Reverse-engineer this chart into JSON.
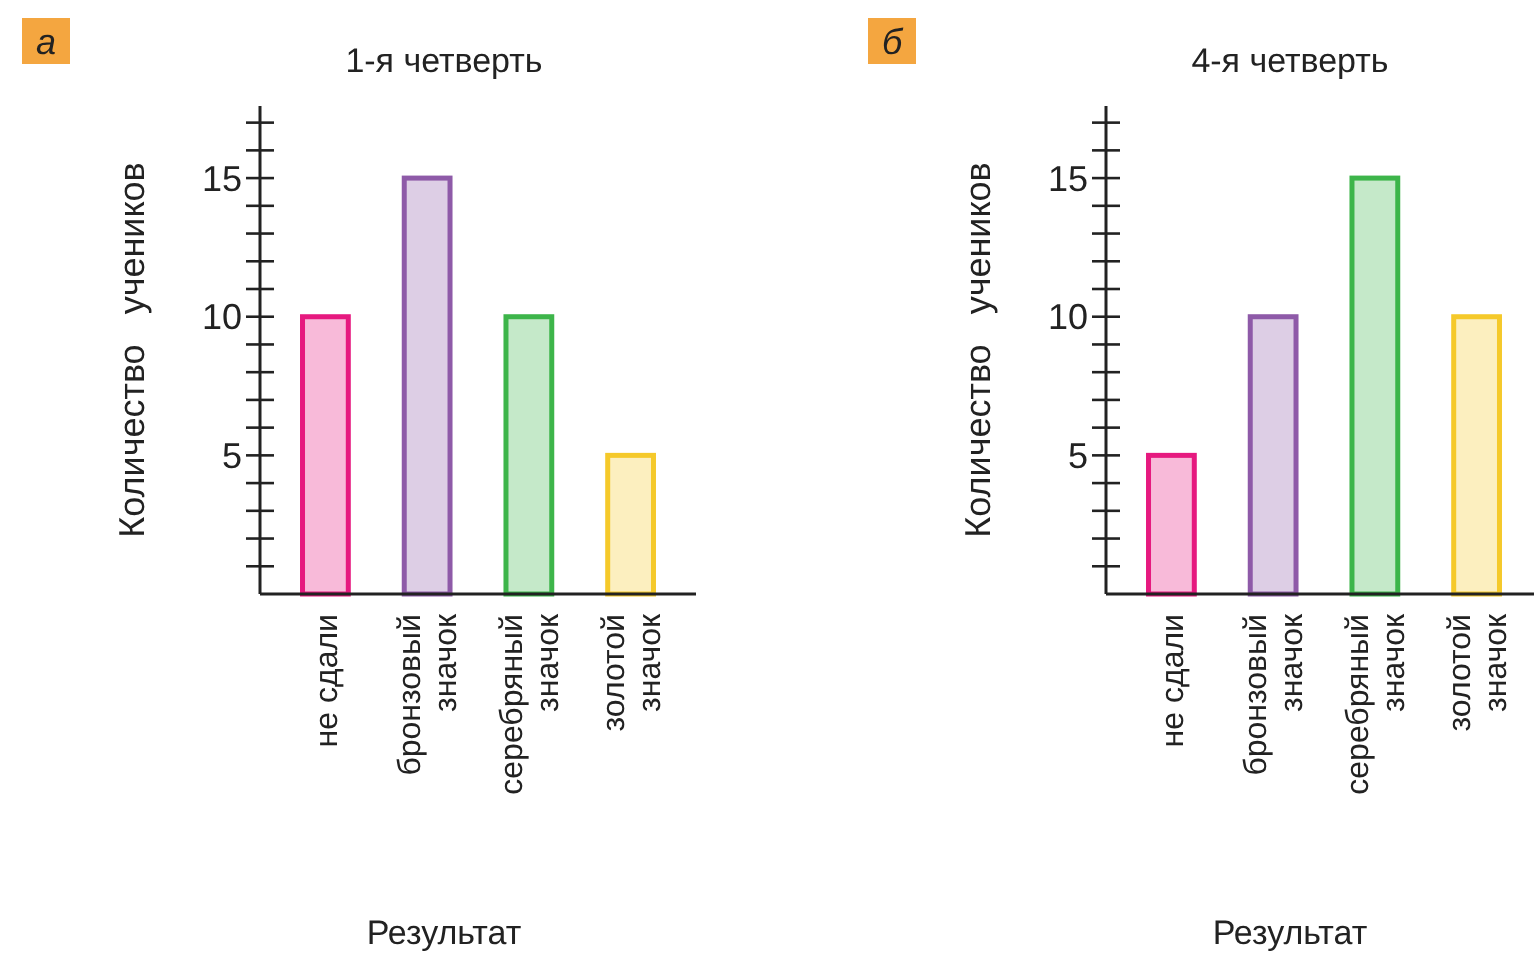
{
  "chart_data": [
    {
      "type": "bar",
      "title": "1-я четверть",
      "xlabel": "Результат",
      "ylabel": "Количество   учеников",
      "annotations": [
        "а"
      ],
      "categories": [
        "не сдали",
        "бронзовый\nзначок",
        "серебряный\nзначок",
        "золотой\nзначок"
      ],
      "values": [
        10,
        15,
        10,
        5
      ],
      "colors": [
        "#e6197f",
        "#8e5aa8",
        "#3db54a",
        "#f5c92a"
      ],
      "ylim": [
        0,
        17.6
      ],
      "yticks": [
        {
          "value": 1,
          "label": null
        },
        {
          "value": 2,
          "label": null
        },
        {
          "value": 3,
          "label": null
        },
        {
          "value": 4,
          "label": null
        },
        5,
        {
          "value": 6,
          "label": null
        },
        {
          "value": 7,
          "label": null
        },
        {
          "value": 8,
          "label": null
        },
        {
          "value": 9,
          "label": null
        },
        10,
        {
          "value": 11,
          "label": null
        },
        {
          "value": 12,
          "label": null
        },
        {
          "value": 13,
          "label": null
        },
        {
          "value": 14,
          "label": null
        },
        15,
        {
          "value": 16,
          "label": null
        },
        {
          "value": 17,
          "label": null
        }
      ]
    },
    {
      "type": "bar",
      "title": "4-я четверть",
      "xlabel": "Результат",
      "ylabel": "Количество   учеников",
      "annotations": [
        "б"
      ],
      "categories": [
        "не сдали",
        "бронзовый\nзначок",
        "серебряный\nзначок",
        "золотой\nзначок"
      ],
      "values": [
        5,
        10,
        15,
        10
      ],
      "colors": [
        "#e6197f",
        "#8e5aa8",
        "#3db54a",
        "#f5c92a"
      ],
      "ylim": [
        0,
        17.6
      ],
      "yticks": [
        {
          "value": 1,
          "label": null
        },
        {
          "value": 2,
          "label": null
        },
        {
          "value": 3,
          "label": null
        },
        {
          "value": 4,
          "label": null
        },
        5,
        {
          "value": 6,
          "label": null
        },
        {
          "value": 7,
          "label": null
        },
        {
          "value": 8,
          "label": null
        },
        {
          "value": 9,
          "label": null
        },
        10,
        {
          "value": 11,
          "label": null
        },
        {
          "value": 12,
          "label": null
        },
        {
          "value": 13,
          "label": null
        },
        {
          "value": 14,
          "label": null
        },
        15,
        {
          "value": 16,
          "label": null
        },
        {
          "value": 17,
          "label": null
        }
      ]
    }
  ]
}
